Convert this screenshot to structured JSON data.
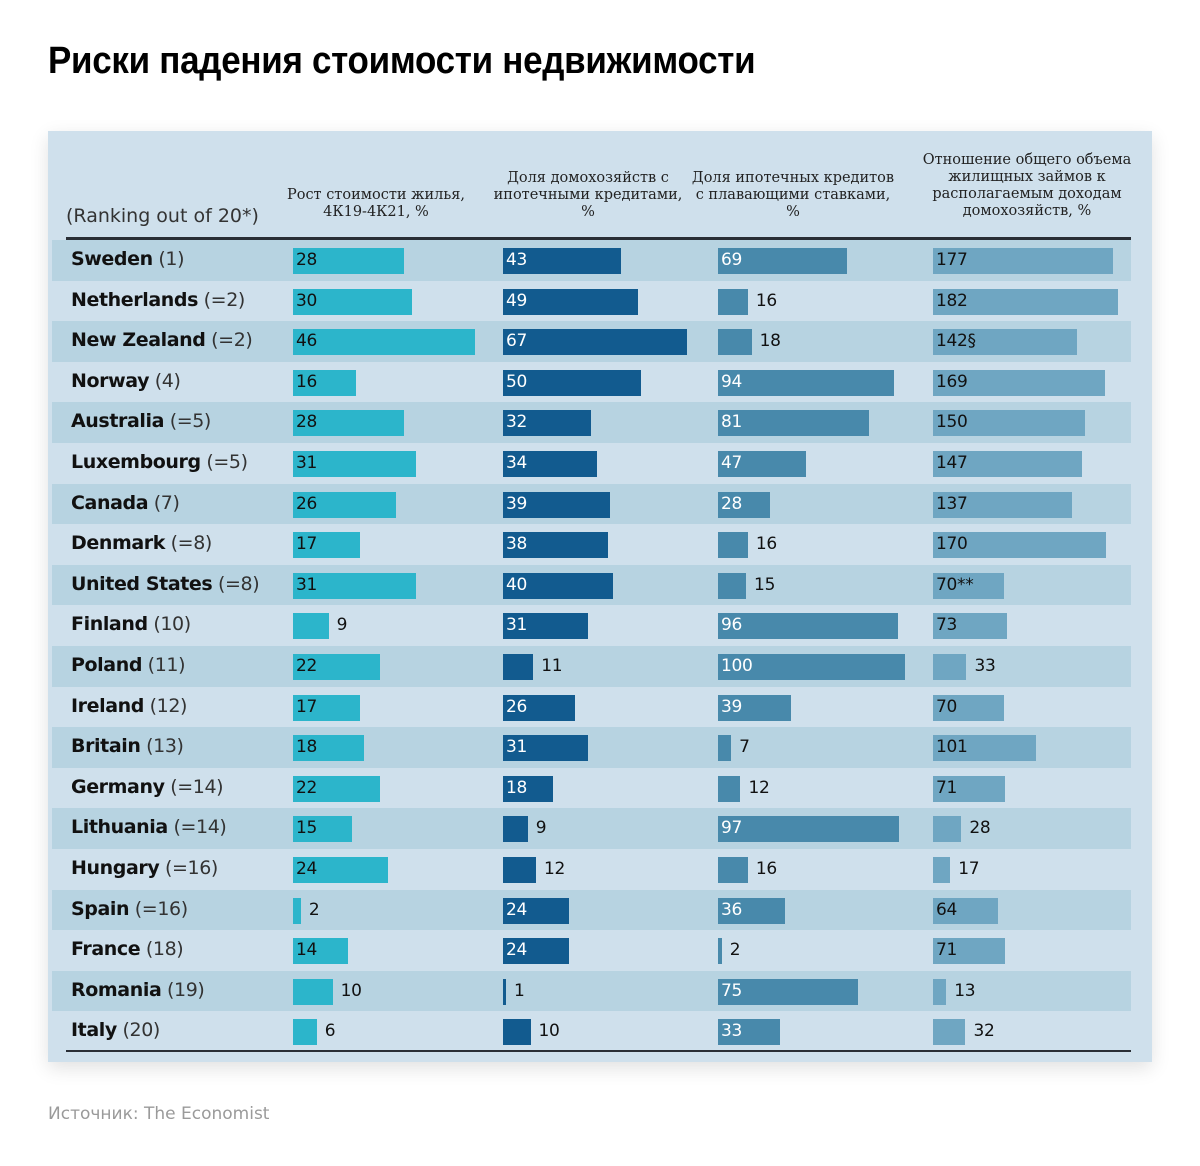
{
  "title": "Риски падения стоимости недвижимости",
  "source": "Источник: The Economist",
  "colors": {
    "panel_bg": "#cfe0ec",
    "stripe": "#b7d3e1",
    "col1": "#2cb5cb",
    "col2": "#125b8f",
    "col3": "#4889ab",
    "col4": "#6fa6c2"
  },
  "chart_data": {
    "type": "table",
    "title": "Риски падения стоимости недвижимости",
    "row_header": "(Ranking out of 20*)",
    "columns": [
      {
        "key": "house_price_growth",
        "label": "Рост стоимости жилья, 4К19-4К21, %",
        "color": "#2cb5cb",
        "max": 46
      },
      {
        "key": "households_with_mortgage",
        "label": "Доля домохозяйств с ипотечными кредитами, %",
        "color": "#125b8f",
        "max": 67
      },
      {
        "key": "floating_rate_share",
        "label": "Доля ипотечных кредитов с плавающими ставками, %",
        "color": "#4889ab",
        "max": 100
      },
      {
        "key": "debt_to_income",
        "label": "Отношение общего объема жилищных займов к располагаемым доходам домохозяйств, %",
        "color": "#6fa6c2",
        "max": 182
      }
    ],
    "rows": [
      {
        "country": "Sweden",
        "rank": "(1)",
        "values": [
          28,
          43,
          69,
          177
        ],
        "labels": [
          "28",
          "43",
          "69",
          "177"
        ]
      },
      {
        "country": "Netherlands",
        "rank": "(=2)",
        "values": [
          30,
          49,
          16,
          182
        ],
        "labels": [
          "30",
          "49",
          "16",
          "182"
        ]
      },
      {
        "country": "New Zealand",
        "rank": "(=2)",
        "values": [
          46,
          67,
          18,
          142
        ],
        "labels": [
          "46",
          "67",
          "18",
          "142§"
        ]
      },
      {
        "country": "Norway",
        "rank": "(4)",
        "values": [
          16,
          50,
          94,
          169
        ],
        "labels": [
          "16",
          "50",
          "94",
          "169"
        ]
      },
      {
        "country": "Australia",
        "rank": "(=5)",
        "values": [
          28,
          32,
          81,
          150
        ],
        "labels": [
          "28",
          "32",
          "81",
          "150"
        ]
      },
      {
        "country": "Luxembourg",
        "rank": "(=5)",
        "values": [
          31,
          34,
          47,
          147
        ],
        "labels": [
          "31",
          "34",
          "47",
          "147"
        ]
      },
      {
        "country": "Canada",
        "rank": "(7)",
        "values": [
          26,
          39,
          28,
          137
        ],
        "labels": [
          "26",
          "39",
          "28",
          "137"
        ]
      },
      {
        "country": "Denmark",
        "rank": "(=8)",
        "values": [
          17,
          38,
          16,
          170
        ],
        "labels": [
          "17",
          "38",
          "16",
          "170"
        ]
      },
      {
        "country": "United States",
        "rank": "(=8)",
        "values": [
          31,
          40,
          15,
          70
        ],
        "labels": [
          "31",
          "40",
          "15",
          "70**"
        ]
      },
      {
        "country": "Finland",
        "rank": "(10)",
        "values": [
          9,
          31,
          96,
          73
        ],
        "labels": [
          "9",
          "31",
          "96",
          "73"
        ]
      },
      {
        "country": "Poland",
        "rank": "(11)",
        "values": [
          22,
          11,
          100,
          33
        ],
        "labels": [
          "22",
          "11",
          "100",
          "33"
        ]
      },
      {
        "country": "Ireland",
        "rank": "(12)",
        "values": [
          17,
          26,
          39,
          70
        ],
        "labels": [
          "17",
          "26",
          "39",
          "70"
        ]
      },
      {
        "country": "Britain",
        "rank": "(13)",
        "values": [
          18,
          31,
          7,
          101
        ],
        "labels": [
          "18",
          "31",
          "7",
          "101"
        ]
      },
      {
        "country": "Germany",
        "rank": "(=14)",
        "values": [
          22,
          18,
          12,
          71
        ],
        "labels": [
          "22",
          "18",
          "12",
          "71"
        ]
      },
      {
        "country": "Lithuania",
        "rank": "(=14)",
        "values": [
          15,
          9,
          97,
          28
        ],
        "labels": [
          "15",
          "9",
          "97",
          "28"
        ]
      },
      {
        "country": "Hungary",
        "rank": "(=16)",
        "values": [
          24,
          12,
          16,
          17
        ],
        "labels": [
          "24",
          "12",
          "16",
          "17"
        ]
      },
      {
        "country": "Spain",
        "rank": "(=16)",
        "values": [
          2,
          24,
          36,
          64
        ],
        "labels": [
          "2",
          "24",
          "36",
          "64"
        ]
      },
      {
        "country": "France",
        "rank": "(18)",
        "values": [
          14,
          24,
          2,
          71
        ],
        "labels": [
          "14",
          "24",
          "2",
          "71"
        ]
      },
      {
        "country": "Romania",
        "rank": "(19)",
        "values": [
          10,
          1,
          75,
          13
        ],
        "labels": [
          "10",
          "1",
          "75",
          "13"
        ]
      },
      {
        "country": "Italy",
        "rank": "(20)",
        "values": [
          6,
          10,
          33,
          32
        ],
        "labels": [
          "6",
          "10",
          "33",
          "32"
        ]
      }
    ]
  }
}
